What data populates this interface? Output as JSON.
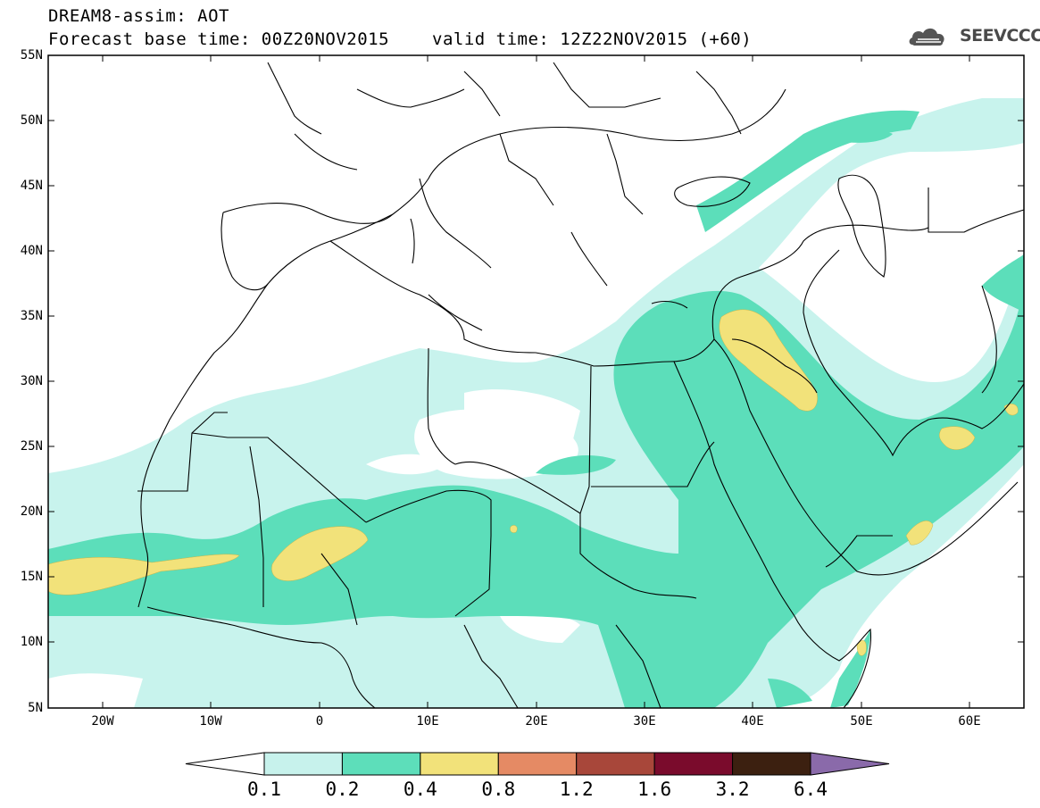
{
  "header": {
    "title_line1": "DREAM8-assim: AOT",
    "base_time": "Forecast base time: 00Z20NOV2015",
    "valid_time": "valid time: 12Z22NOV2015 (+60)",
    "logo_text": "SEEVCCC",
    "logo_icon": "cloud-icon"
  },
  "map": {
    "lon_range": [
      -25,
      65
    ],
    "lat_range": [
      5,
      55
    ],
    "lat_labels": [
      "55N",
      "50N",
      "45N",
      "40N",
      "35N",
      "30N",
      "25N",
      "20N",
      "15N",
      "10N",
      "5N"
    ],
    "lon_labels": [
      "20W",
      "10W",
      "0",
      "10E",
      "20E",
      "30E",
      "40E",
      "50E",
      "60E"
    ],
    "field": "Aerosol Optical Thickness"
  },
  "colorbar": {
    "levels": [
      "0.1",
      "0.2",
      "0.4",
      "0.8",
      "1.2",
      "1.6",
      "3.2",
      "6.4"
    ],
    "colors": [
      "#ffffff",
      "#c7f2ec",
      "#5ddeba",
      "#f2e27a",
      "#e58a64",
      "#a8473a",
      "#7a0b2c",
      "#3c2010",
      "#8a6aaa"
    ]
  }
}
